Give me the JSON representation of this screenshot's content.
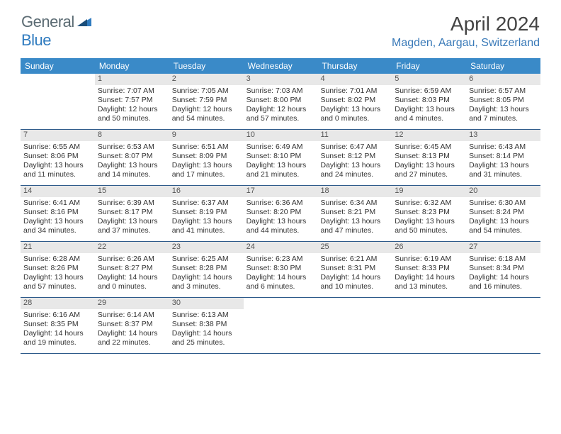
{
  "logo": {
    "text1": "General",
    "text2": "Blue"
  },
  "title": "April 2024",
  "location": "Magden, Aargau, Switzerland",
  "colors": {
    "header_bg": "#3a8ac8",
    "header_text": "#ffffff",
    "week_border": "#2d5a8a",
    "daynum_bg": "#e8e8e8",
    "logo_general": "#5a6a72",
    "logo_blue": "#2f7bbf",
    "location_color": "#3a7ab8",
    "body_text": "#333333",
    "background": "#ffffff"
  },
  "dayHeaders": [
    "Sunday",
    "Monday",
    "Tuesday",
    "Wednesday",
    "Thursday",
    "Friday",
    "Saturday"
  ],
  "weeks": [
    [
      null,
      {
        "n": "1",
        "sr": "7:07 AM",
        "ss": "7:57 PM",
        "d1": "12 hours",
        "d2": "and 50 minutes."
      },
      {
        "n": "2",
        "sr": "7:05 AM",
        "ss": "7:59 PM",
        "d1": "12 hours",
        "d2": "and 54 minutes."
      },
      {
        "n": "3",
        "sr": "7:03 AM",
        "ss": "8:00 PM",
        "d1": "12 hours",
        "d2": "and 57 minutes."
      },
      {
        "n": "4",
        "sr": "7:01 AM",
        "ss": "8:02 PM",
        "d1": "13 hours",
        "d2": "and 0 minutes."
      },
      {
        "n": "5",
        "sr": "6:59 AM",
        "ss": "8:03 PM",
        "d1": "13 hours",
        "d2": "and 4 minutes."
      },
      {
        "n": "6",
        "sr": "6:57 AM",
        "ss": "8:05 PM",
        "d1": "13 hours",
        "d2": "and 7 minutes."
      }
    ],
    [
      {
        "n": "7",
        "sr": "6:55 AM",
        "ss": "8:06 PM",
        "d1": "13 hours",
        "d2": "and 11 minutes."
      },
      {
        "n": "8",
        "sr": "6:53 AM",
        "ss": "8:07 PM",
        "d1": "13 hours",
        "d2": "and 14 minutes."
      },
      {
        "n": "9",
        "sr": "6:51 AM",
        "ss": "8:09 PM",
        "d1": "13 hours",
        "d2": "and 17 minutes."
      },
      {
        "n": "10",
        "sr": "6:49 AM",
        "ss": "8:10 PM",
        "d1": "13 hours",
        "d2": "and 21 minutes."
      },
      {
        "n": "11",
        "sr": "6:47 AM",
        "ss": "8:12 PM",
        "d1": "13 hours",
        "d2": "and 24 minutes."
      },
      {
        "n": "12",
        "sr": "6:45 AM",
        "ss": "8:13 PM",
        "d1": "13 hours",
        "d2": "and 27 minutes."
      },
      {
        "n": "13",
        "sr": "6:43 AM",
        "ss": "8:14 PM",
        "d1": "13 hours",
        "d2": "and 31 minutes."
      }
    ],
    [
      {
        "n": "14",
        "sr": "6:41 AM",
        "ss": "8:16 PM",
        "d1": "13 hours",
        "d2": "and 34 minutes."
      },
      {
        "n": "15",
        "sr": "6:39 AM",
        "ss": "8:17 PM",
        "d1": "13 hours",
        "d2": "and 37 minutes."
      },
      {
        "n": "16",
        "sr": "6:37 AM",
        "ss": "8:19 PM",
        "d1": "13 hours",
        "d2": "and 41 minutes."
      },
      {
        "n": "17",
        "sr": "6:36 AM",
        "ss": "8:20 PM",
        "d1": "13 hours",
        "d2": "and 44 minutes."
      },
      {
        "n": "18",
        "sr": "6:34 AM",
        "ss": "8:21 PM",
        "d1": "13 hours",
        "d2": "and 47 minutes."
      },
      {
        "n": "19",
        "sr": "6:32 AM",
        "ss": "8:23 PM",
        "d1": "13 hours",
        "d2": "and 50 minutes."
      },
      {
        "n": "20",
        "sr": "6:30 AM",
        "ss": "8:24 PM",
        "d1": "13 hours",
        "d2": "and 54 minutes."
      }
    ],
    [
      {
        "n": "21",
        "sr": "6:28 AM",
        "ss": "8:26 PM",
        "d1": "13 hours",
        "d2": "and 57 minutes."
      },
      {
        "n": "22",
        "sr": "6:26 AM",
        "ss": "8:27 PM",
        "d1": "14 hours",
        "d2": "and 0 minutes."
      },
      {
        "n": "23",
        "sr": "6:25 AM",
        "ss": "8:28 PM",
        "d1": "14 hours",
        "d2": "and 3 minutes."
      },
      {
        "n": "24",
        "sr": "6:23 AM",
        "ss": "8:30 PM",
        "d1": "14 hours",
        "d2": "and 6 minutes."
      },
      {
        "n": "25",
        "sr": "6:21 AM",
        "ss": "8:31 PM",
        "d1": "14 hours",
        "d2": "and 10 minutes."
      },
      {
        "n": "26",
        "sr": "6:19 AM",
        "ss": "8:33 PM",
        "d1": "14 hours",
        "d2": "and 13 minutes."
      },
      {
        "n": "27",
        "sr": "6:18 AM",
        "ss": "8:34 PM",
        "d1": "14 hours",
        "d2": "and 16 minutes."
      }
    ],
    [
      {
        "n": "28",
        "sr": "6:16 AM",
        "ss": "8:35 PM",
        "d1": "14 hours",
        "d2": "and 19 minutes."
      },
      {
        "n": "29",
        "sr": "6:14 AM",
        "ss": "8:37 PM",
        "d1": "14 hours",
        "d2": "and 22 minutes."
      },
      {
        "n": "30",
        "sr": "6:13 AM",
        "ss": "8:38 PM",
        "d1": "14 hours",
        "d2": "and 25 minutes."
      },
      null,
      null,
      null,
      null
    ]
  ],
  "labels": {
    "sunrise": "Sunrise:",
    "sunset": "Sunset:",
    "daylight": "Daylight:"
  }
}
